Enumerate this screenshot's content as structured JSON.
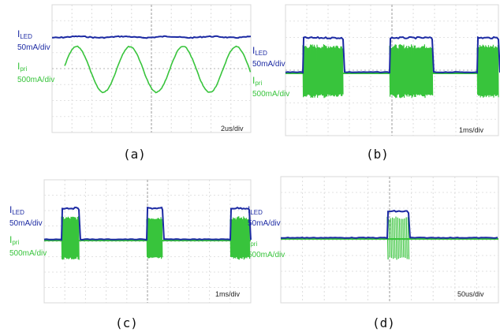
{
  "chart_data": [
    {
      "type": "line",
      "caption": "(a)",
      "time_scale": "2us/div",
      "series": [
        {
          "name": "I_LED",
          "label_main": "I",
          "label_sub": "LED",
          "unit": "50mA/div",
          "color": "#1c2aa3",
          "waveform": "dc"
        },
        {
          "name": "I_pri",
          "label_main": "I",
          "label_sub": "pri",
          "unit": "500mA/div",
          "color": "#38c43c",
          "waveform": "sine",
          "cycles_visible": 3.5
        }
      ]
    },
    {
      "type": "line",
      "caption": "(b)",
      "time_scale": "1ms/div",
      "series": [
        {
          "name": "I_LED",
          "label_main": "I",
          "label_sub": "LED",
          "unit": "50mA/div",
          "color": "#1c2aa3",
          "waveform": "pulse"
        },
        {
          "name": "I_pri",
          "label_main": "I",
          "label_sub": "pri",
          "unit": "500mA/div",
          "color": "#38c43c",
          "waveform": "burst"
        }
      ]
    },
    {
      "type": "line",
      "caption": "(c)",
      "time_scale": "1ms/div",
      "series": [
        {
          "name": "I_LED",
          "label_main": "I",
          "label_sub": "LED",
          "unit": "50mA/div",
          "color": "#1c2aa3",
          "waveform": "pulse"
        },
        {
          "name": "I_pri",
          "label_main": "I",
          "label_sub": "pri",
          "unit": "500mA/div",
          "color": "#38c43c",
          "waveform": "burst"
        }
      ]
    },
    {
      "type": "line",
      "caption": "(d)",
      "time_scale": "50us/div",
      "series": [
        {
          "name": "I_LED",
          "label_main": "I",
          "label_sub": "LED",
          "unit": "50mA/div",
          "color": "#1c2aa3",
          "waveform": "pulse"
        },
        {
          "name": "I_pri",
          "label_main": "I",
          "label_sub": "pri",
          "unit": "500mA/div",
          "color": "#38c43c",
          "waveform": "burst"
        }
      ]
    }
  ]
}
